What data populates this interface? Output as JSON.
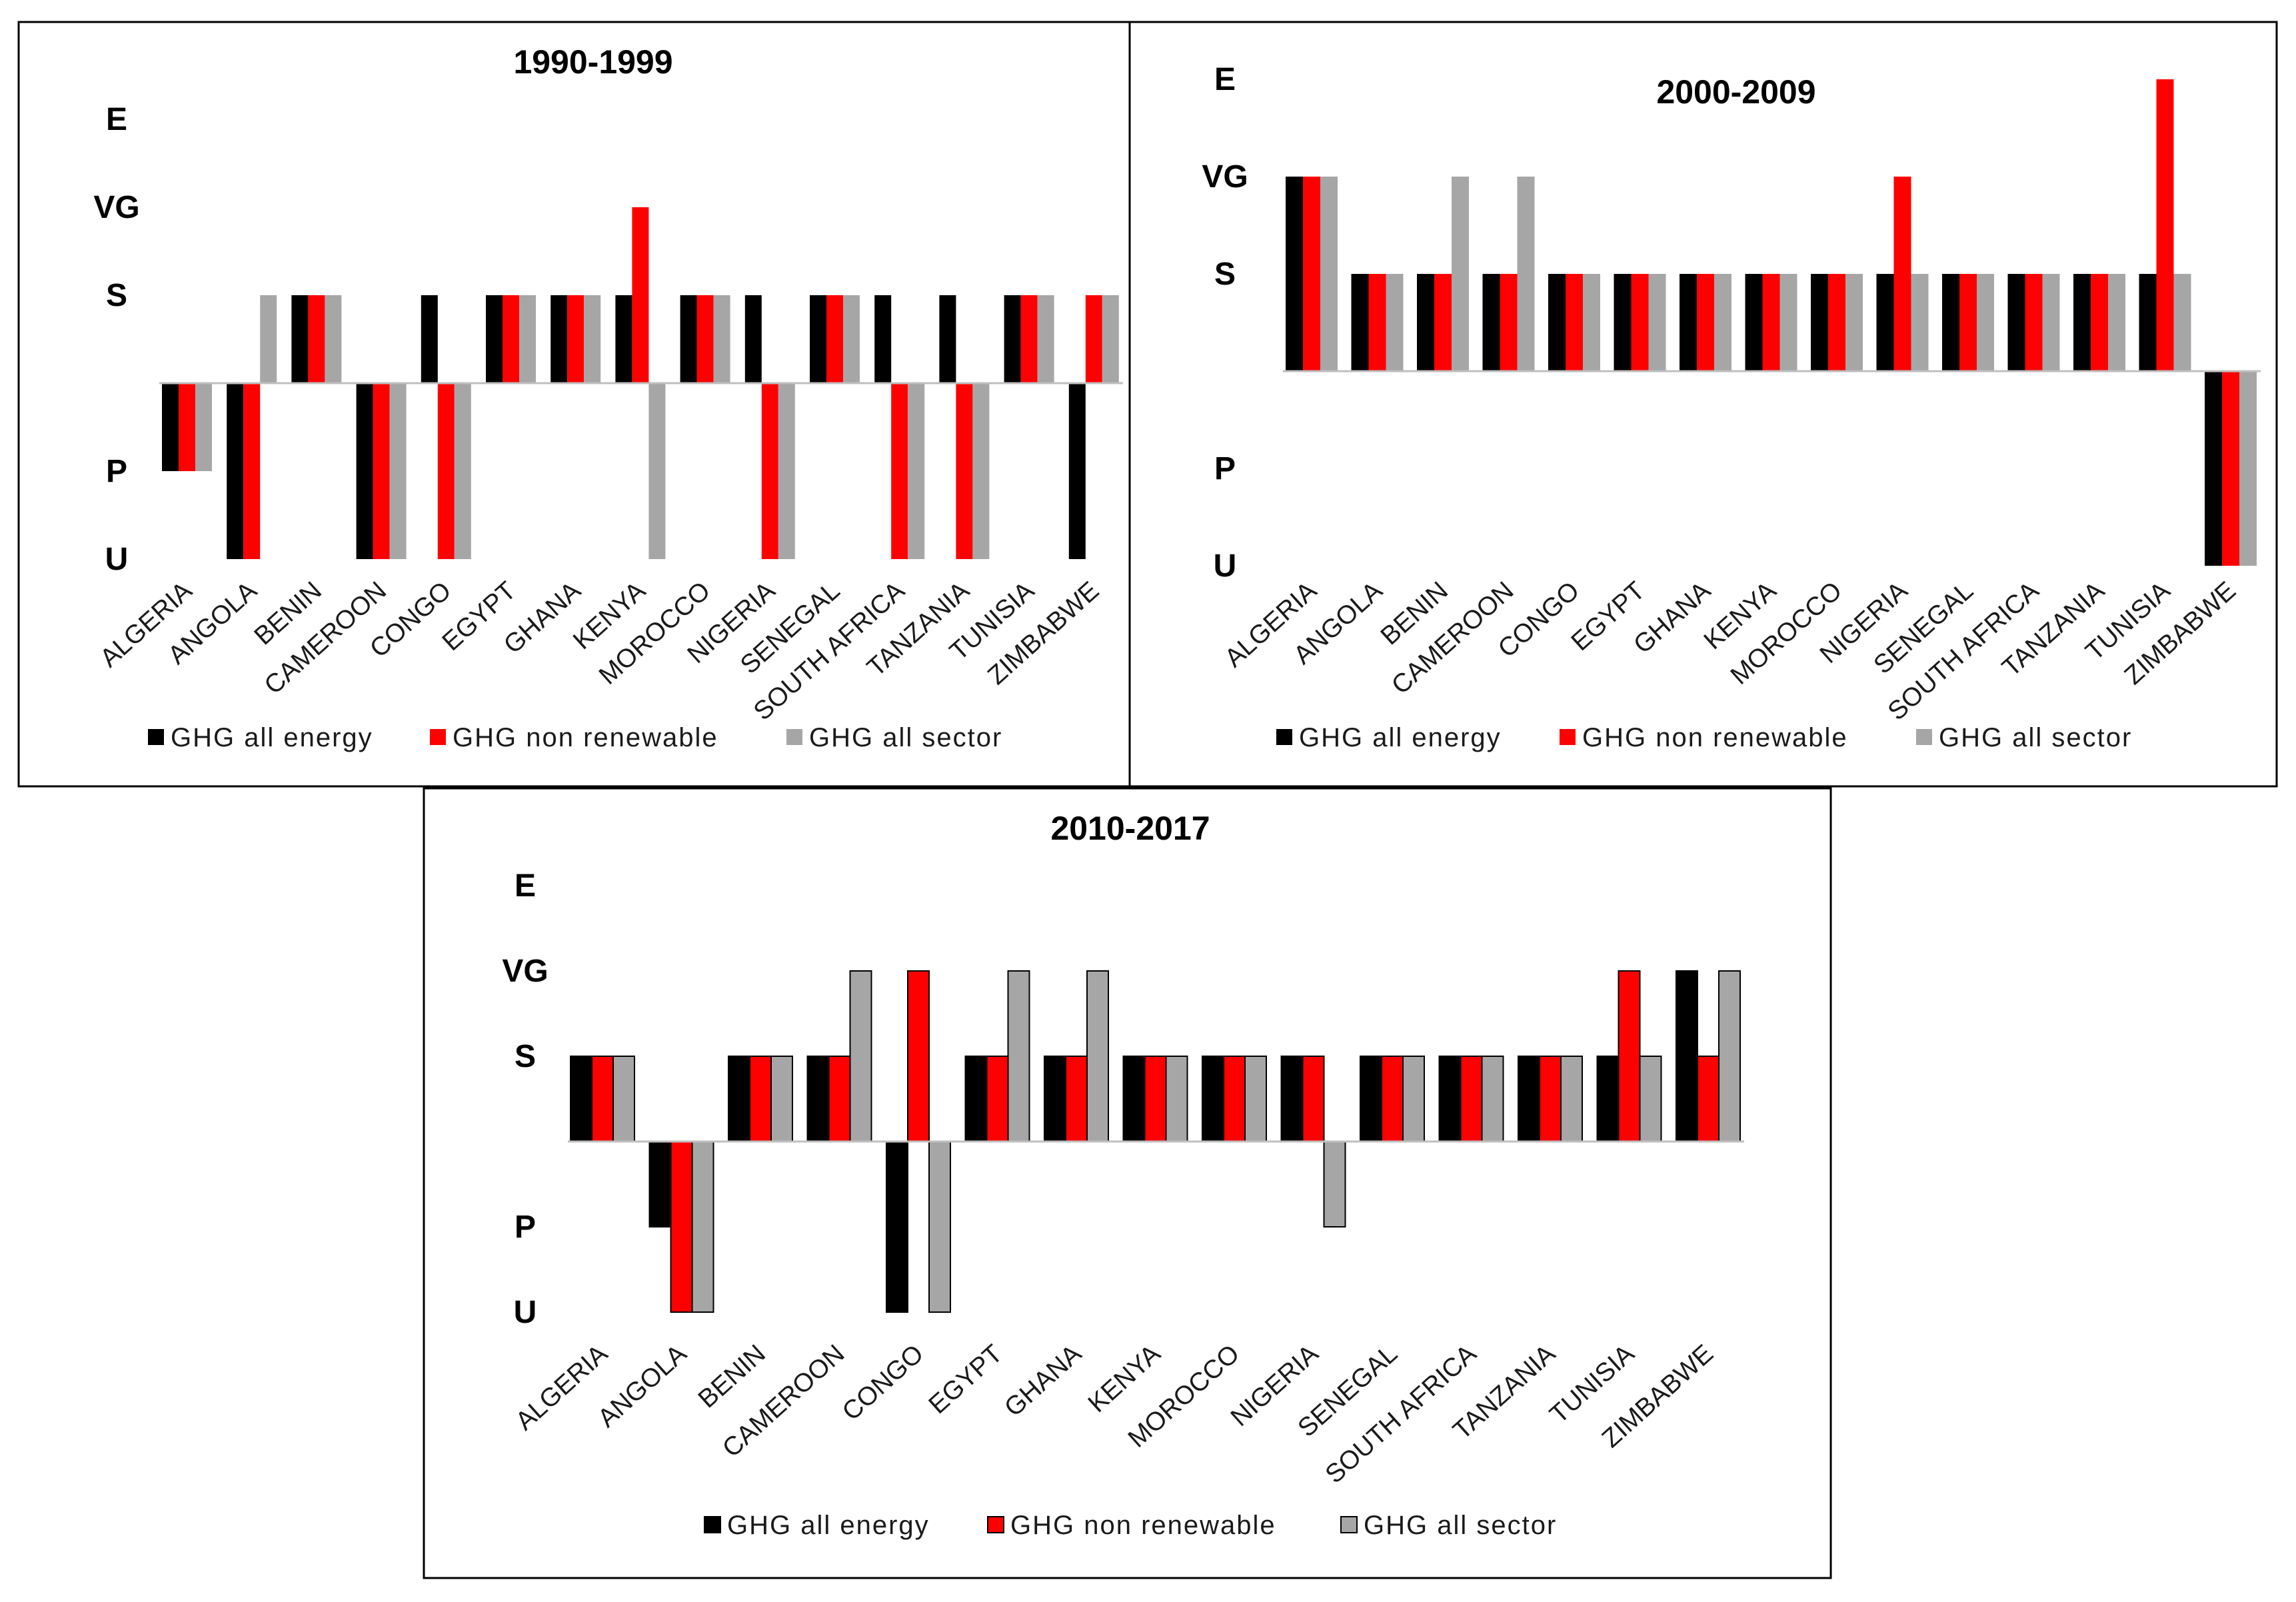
{
  "legend": [
    "GHG all energy",
    "GHG non renewable",
    "GHG all sector"
  ],
  "colors": {
    "energy": "#000000",
    "nonrenew": "#ff0000",
    "sector": "#a6a6a6",
    "axis": "#bfbfbf"
  },
  "chart_data": [
    {
      "type": "bar",
      "title": "1990-1999",
      "y_levels": [
        "U",
        "P",
        "S",
        "VG",
        "E"
      ],
      "y_values": [
        -2,
        -1,
        1,
        2,
        3
      ],
      "ylim": [
        -2,
        3
      ],
      "categories": [
        "ALGERIA",
        "ANGOLA",
        "BENIN",
        "CAMEROON",
        "CONGO",
        "EGYPT",
        "GHANA",
        "KENYA",
        "MOROCCO",
        "NIGERIA",
        "SENEGAL",
        "SOUTH AFRICA",
        "TANZANIA",
        "TUNISIA",
        "ZIMBABWE"
      ],
      "series": [
        {
          "name": "GHG all energy",
          "values": [
            -1,
            -2,
            1,
            -2,
            1,
            1,
            1,
            1,
            1,
            1,
            1,
            1,
            1,
            1,
            -2
          ]
        },
        {
          "name": "GHG non renewable",
          "values": [
            -1,
            -2,
            1,
            -2,
            -2,
            1,
            1,
            2,
            1,
            -2,
            1,
            -2,
            -2,
            1,
            1
          ]
        },
        {
          "name": "GHG all sector",
          "values": [
            -1,
            1,
            1,
            -2,
            -2,
            1,
            1,
            -2,
            1,
            -2,
            1,
            -2,
            -2,
            1,
            1
          ]
        }
      ]
    },
    {
      "type": "bar",
      "title": "2000-2009",
      "y_levels": [
        "U",
        "P",
        "S",
        "VG",
        "E"
      ],
      "y_values": [
        -2,
        -1,
        1,
        2,
        3
      ],
      "ylim": [
        -2,
        3
      ],
      "categories": [
        "ALGERIA",
        "ANGOLA",
        "BENIN",
        "CAMEROON",
        "CONGO",
        "EGYPT",
        "GHANA",
        "KENYA",
        "MOROCCO",
        "NIGERIA",
        "SENEGAL",
        "SOUTH AFRICA",
        "TANZANIA",
        "TUNISIA",
        "ZIMBABWE"
      ],
      "series": [
        {
          "name": "GHG all energy",
          "values": [
            2,
            1,
            1,
            1,
            1,
            1,
            1,
            1,
            1,
            1,
            1,
            1,
            1,
            1,
            -2
          ]
        },
        {
          "name": "GHG non renewable",
          "values": [
            2,
            1,
            1,
            1,
            1,
            1,
            1,
            1,
            1,
            2,
            1,
            1,
            1,
            3,
            -2
          ]
        },
        {
          "name": "GHG all sector",
          "values": [
            2,
            1,
            2,
            2,
            1,
            1,
            1,
            1,
            1,
            1,
            1,
            1,
            1,
            1,
            -2
          ]
        }
      ]
    },
    {
      "type": "bar",
      "title": "2010-2017",
      "y_levels": [
        "U",
        "P",
        "S",
        "VG",
        "E"
      ],
      "y_values": [
        -2,
        -1,
        1,
        2,
        3
      ],
      "ylim": [
        -2,
        3
      ],
      "categories": [
        "ALGERIA",
        "ANGOLA",
        "BENIN",
        "CAMEROON",
        "CONGO",
        "EGYPT",
        "GHANA",
        "KENYA",
        "MOROCCO",
        "NIGERIA",
        "SENEGAL",
        "SOUTH AFRICA",
        "TANZANIA",
        "TUNISIA",
        "ZIMBABWE"
      ],
      "series": [
        {
          "name": "GHG all energy",
          "values": [
            1,
            -1,
            1,
            1,
            -2,
            1,
            1,
            1,
            1,
            1,
            1,
            1,
            1,
            1,
            2
          ]
        },
        {
          "name": "GHG non renewable",
          "values": [
            1,
            -2,
            1,
            1,
            2,
            1,
            1,
            1,
            1,
            1,
            1,
            1,
            1,
            2,
            1
          ]
        },
        {
          "name": "GHG all sector",
          "values": [
            1,
            -2,
            1,
            2,
            -2,
            2,
            2,
            1,
            1,
            -1,
            1,
            1,
            1,
            1,
            2
          ]
        }
      ]
    }
  ]
}
